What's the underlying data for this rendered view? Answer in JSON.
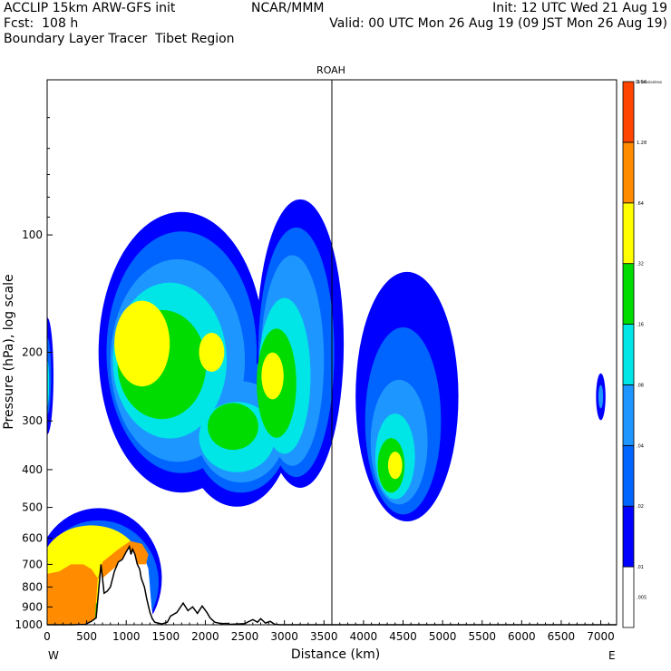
{
  "header": {
    "line1_left": "ACCLIP 15km ARW-GFS init",
    "line1_center": "NCAR/MMM",
    "line1_right": "Init: 12 UTC Wed 21 Aug 19",
    "line2_left": "Fcst:  108 h",
    "line2_right": "Valid: 00 UTC Mon 26 Aug 19 (09 JST Mon 26 Aug 19)",
    "line3_left": "Boundary Layer Tracer  Tibet Region"
  },
  "chart_data": {
    "type": "heatmap",
    "title": "ROAH",
    "xlabel": "Distance (km)",
    "ylabel": "Pressure (hPa), log scale",
    "x_ticks": [
      0,
      500,
      1000,
      1500,
      2000,
      2500,
      3000,
      3500,
      4000,
      4500,
      5000,
      5500,
      6000,
      6500,
      7000
    ],
    "y_ticks": [
      100,
      200,
      300,
      400,
      500,
      600,
      700,
      800,
      900,
      1000
    ],
    "xlim": [
      0,
      7200
    ],
    "ylim": [
      1000,
      40
    ],
    "yscale": "log",
    "grid": false,
    "x_end_labels": {
      "left": "W",
      "right": "E"
    },
    "vertical_marker_km": 3600,
    "colorbar": {
      "header": "Dimensionless",
      "levels": [
        ".005",
        ".01",
        ".02",
        ".04",
        ".08",
        ".16",
        ".32",
        ".64",
        "1.28",
        "2.56"
      ],
      "colors": [
        "#ffffff",
        "#0000ff",
        "#0064ff",
        "#1e96ff",
        "#00e6e6",
        "#00dc00",
        "#ffff00",
        "#ff8c00",
        "#ff4500"
      ]
    },
    "terrain_km_hpa": [
      [
        0,
        1000
      ],
      [
        300,
        1000
      ],
      [
        480,
        998
      ],
      [
        560,
        980
      ],
      [
        620,
        960
      ],
      [
        660,
        780
      ],
      [
        680,
        700
      ],
      [
        700,
        760
      ],
      [
        720,
        830
      ],
      [
        760,
        820
      ],
      [
        800,
        800
      ],
      [
        850,
        730
      ],
      [
        900,
        690
      ],
      [
        950,
        680
      ],
      [
        1000,
        650
      ],
      [
        1040,
        630
      ],
      [
        1060,
        660
      ],
      [
        1080,
        640
      ],
      [
        1110,
        660
      ],
      [
        1140,
        700
      ],
      [
        1170,
        720
      ],
      [
        1190,
        760
      ],
      [
        1230,
        800
      ],
      [
        1260,
        860
      ],
      [
        1300,
        930
      ],
      [
        1330,
        965
      ],
      [
        1360,
        985
      ],
      [
        1450,
        995
      ],
      [
        1520,
        985
      ],
      [
        1560,
        950
      ],
      [
        1640,
        930
      ],
      [
        1720,
        880
      ],
      [
        1780,
        920
      ],
      [
        1840,
        900
      ],
      [
        1900,
        935
      ],
      [
        1960,
        895
      ],
      [
        2020,
        930
      ],
      [
        2060,
        960
      ],
      [
        2120,
        985
      ],
      [
        2200,
        993
      ],
      [
        2280,
        992
      ],
      [
        2300,
        998
      ],
      [
        2500,
        993
      ],
      [
        2600,
        970
      ],
      [
        2660,
        985
      ],
      [
        2700,
        965
      ],
      [
        2760,
        990
      ],
      [
        2820,
        980
      ],
      [
        2880,
        998
      ],
      [
        2950,
        1000
      ],
      [
        7200,
        1000
      ]
    ]
  }
}
